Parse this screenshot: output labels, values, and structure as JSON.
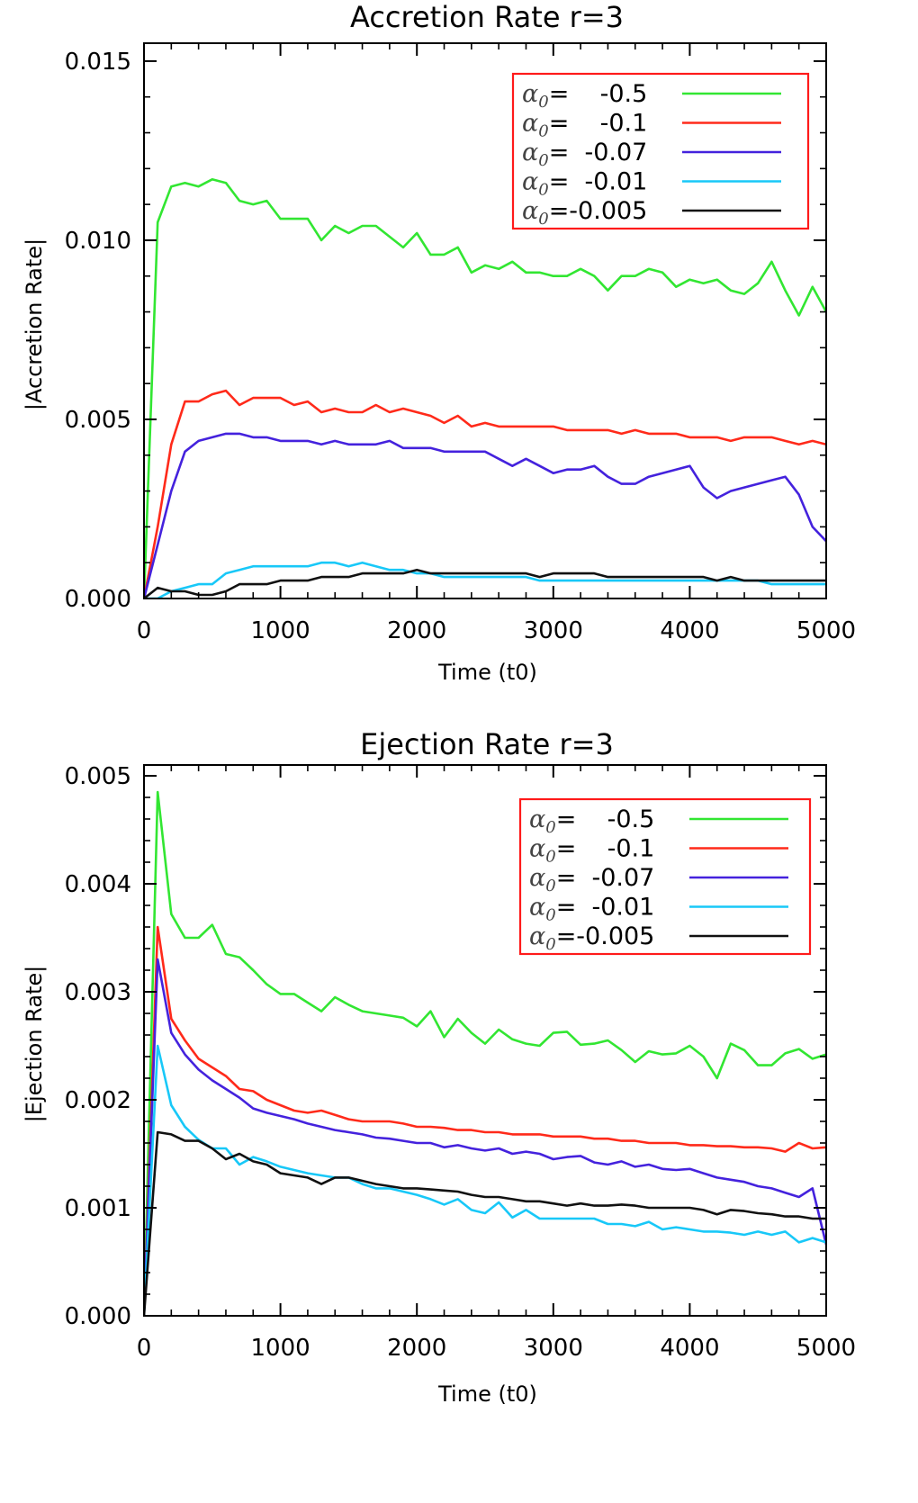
{
  "chart_data": [
    {
      "type": "line",
      "title": "Accretion Rate r=3",
      "xlabel": "Time (t0)",
      "ylabel": "|Accretion Rate|",
      "xlim": [
        0,
        5000
      ],
      "ylim": [
        0,
        0.0155
      ],
      "xticks": [
        "0",
        "1000",
        "2000",
        "3000",
        "4000",
        "5000"
      ],
      "yticks": [
        "0.000",
        "0.005",
        "0.010",
        "0.015"
      ],
      "legend_position": "top-right",
      "legend_symbol": "α",
      "legend_subscript": "0",
      "x": [
        0,
        100,
        200,
        300,
        400,
        500,
        600,
        700,
        800,
        900,
        1000,
        1100,
        1200,
        1300,
        1400,
        1500,
        1600,
        1700,
        1800,
        1900,
        2000,
        2100,
        2200,
        2300,
        2400,
        2500,
        2600,
        2700,
        2800,
        2900,
        3000,
        3100,
        3200,
        3300,
        3400,
        3500,
        3600,
        3700,
        3800,
        3900,
        4000,
        4100,
        4200,
        4300,
        4400,
        4500,
        4600,
        4700,
        4800,
        4900,
        5000
      ],
      "series": [
        {
          "name": "-0.5",
          "legend_text": "=    -0.5",
          "color": "#32e632",
          "values": [
            0,
            0.0105,
            0.0115,
            0.0116,
            0.0115,
            0.0117,
            0.0116,
            0.0111,
            0.011,
            0.0111,
            0.0106,
            0.0106,
            0.0106,
            0.01,
            0.0104,
            0.0102,
            0.0104,
            0.0104,
            0.0101,
            0.0098,
            0.0102,
            0.0096,
            0.0096,
            0.0098,
            0.0091,
            0.0093,
            0.0092,
            0.0094,
            0.0091,
            0.0091,
            0.009,
            0.009,
            0.0092,
            0.009,
            0.0086,
            0.009,
            0.009,
            0.0092,
            0.0091,
            0.0087,
            0.0089,
            0.0088,
            0.0089,
            0.0086,
            0.0085,
            0.0088,
            0.0094,
            0.0086,
            0.0079,
            0.0087,
            0.008
          ]
        },
        {
          "name": "-0.1",
          "legend_text": "=    -0.1",
          "color": "#ff2a1a",
          "values": [
            0,
            0.002,
            0.0043,
            0.0055,
            0.0055,
            0.0057,
            0.0058,
            0.0054,
            0.0056,
            0.0056,
            0.0056,
            0.0054,
            0.0055,
            0.0052,
            0.0053,
            0.0052,
            0.0052,
            0.0054,
            0.0052,
            0.0053,
            0.0052,
            0.0051,
            0.0049,
            0.0051,
            0.0048,
            0.0049,
            0.0048,
            0.0048,
            0.0048,
            0.0048,
            0.0048,
            0.0047,
            0.0047,
            0.0047,
            0.0047,
            0.0046,
            0.0047,
            0.0046,
            0.0046,
            0.0046,
            0.0045,
            0.0045,
            0.0045,
            0.0044,
            0.0045,
            0.0045,
            0.0045,
            0.0044,
            0.0043,
            0.0044,
            0.0043
          ]
        },
        {
          "name": "-0.07",
          "legend_text": "=  -0.07",
          "color": "#4422dd",
          "values": [
            0,
            0.0015,
            0.003,
            0.0041,
            0.0044,
            0.0045,
            0.0046,
            0.0046,
            0.0045,
            0.0045,
            0.0044,
            0.0044,
            0.0044,
            0.0043,
            0.0044,
            0.0043,
            0.0043,
            0.0043,
            0.0044,
            0.0042,
            0.0042,
            0.0042,
            0.0041,
            0.0041,
            0.0041,
            0.0041,
            0.0039,
            0.0037,
            0.0039,
            0.0037,
            0.0035,
            0.0036,
            0.0036,
            0.0037,
            0.0034,
            0.0032,
            0.0032,
            0.0034,
            0.0035,
            0.0036,
            0.0037,
            0.0031,
            0.0028,
            0.003,
            0.0031,
            0.0032,
            0.0033,
            0.0034,
            0.0029,
            0.002,
            0.0016
          ]
        },
        {
          "name": "-0.01",
          "legend_text": "=  -0.01",
          "color": "#18c8f8",
          "values": [
            0,
            0.0,
            0.0002,
            0.0003,
            0.0004,
            0.0004,
            0.0007,
            0.0008,
            0.0009,
            0.0009,
            0.0009,
            0.0009,
            0.0009,
            0.001,
            0.001,
            0.0009,
            0.001,
            0.0009,
            0.0008,
            0.0008,
            0.0007,
            0.0007,
            0.0006,
            0.0006,
            0.0006,
            0.0006,
            0.0006,
            0.0006,
            0.0006,
            0.0005,
            0.0005,
            0.0005,
            0.0005,
            0.0005,
            0.0005,
            0.0005,
            0.0005,
            0.0005,
            0.0005,
            0.0005,
            0.0005,
            0.0005,
            0.0005,
            0.0005,
            0.0005,
            0.0005,
            0.0004,
            0.0004,
            0.0004,
            0.0004,
            0.0004
          ]
        },
        {
          "name": "-0.005",
          "legend_text": "=-0.005",
          "color": "#111111",
          "values": [
            0,
            0.0003,
            0.0002,
            0.0002,
            0.0001,
            0.0001,
            0.0002,
            0.0004,
            0.0004,
            0.0004,
            0.0005,
            0.0005,
            0.0005,
            0.0006,
            0.0006,
            0.0006,
            0.0007,
            0.0007,
            0.0007,
            0.0007,
            0.0008,
            0.0007,
            0.0007,
            0.0007,
            0.0007,
            0.0007,
            0.0007,
            0.0007,
            0.0007,
            0.0006,
            0.0007,
            0.0007,
            0.0007,
            0.0007,
            0.0006,
            0.0006,
            0.0006,
            0.0006,
            0.0006,
            0.0006,
            0.0006,
            0.0006,
            0.0005,
            0.0006,
            0.0005,
            0.0005,
            0.0005,
            0.0005,
            0.0005,
            0.0005,
            0.0005
          ]
        }
      ]
    },
    {
      "type": "line",
      "title": "Ejection Rate r=3",
      "xlabel": "Time (t0)",
      "ylabel": "|Ejection Rate|",
      "xlim": [
        0,
        5000
      ],
      "ylim": [
        0,
        0.0051
      ],
      "xticks": [
        "0",
        "1000",
        "2000",
        "3000",
        "4000",
        "5000"
      ],
      "yticks": [
        "0.000",
        "0.001",
        "0.002",
        "0.003",
        "0.004",
        "0.005"
      ],
      "legend_position": "top-right",
      "legend_symbol": "α",
      "legend_subscript": "0",
      "x": [
        0,
        100,
        200,
        300,
        400,
        500,
        600,
        700,
        800,
        900,
        1000,
        1100,
        1200,
        1300,
        1400,
        1500,
        1600,
        1700,
        1800,
        1900,
        2000,
        2100,
        2200,
        2300,
        2400,
        2500,
        2600,
        2700,
        2800,
        2900,
        3000,
        3100,
        3200,
        3300,
        3400,
        3500,
        3600,
        3700,
        3800,
        3900,
        4000,
        4100,
        4200,
        4300,
        4400,
        4500,
        4600,
        4700,
        4800,
        4900,
        5000
      ],
      "series": [
        {
          "name": "-0.5",
          "legend_text": "=    -0.5",
          "color": "#32e632",
          "values": [
            0,
            0.00485,
            0.00372,
            0.0035,
            0.0035,
            0.00362,
            0.00335,
            0.00332,
            0.0032,
            0.00307,
            0.00298,
            0.00298,
            0.0029,
            0.00282,
            0.00295,
            0.00288,
            0.00282,
            0.0028,
            0.00278,
            0.00276,
            0.00268,
            0.00282,
            0.00258,
            0.00275,
            0.00262,
            0.00252,
            0.00265,
            0.00256,
            0.00252,
            0.0025,
            0.00262,
            0.00263,
            0.00251,
            0.00252,
            0.00255,
            0.00246,
            0.00235,
            0.00245,
            0.00242,
            0.00243,
            0.0025,
            0.0024,
            0.0022,
            0.00252,
            0.00246,
            0.00232,
            0.00232,
            0.00243,
            0.00247,
            0.00238,
            0.00242
          ]
        },
        {
          "name": "-0.1",
          "legend_text": "=    -0.1",
          "color": "#ff2a1a",
          "values": [
            0,
            0.0036,
            0.00275,
            0.00255,
            0.00238,
            0.0023,
            0.00222,
            0.0021,
            0.00208,
            0.002,
            0.00195,
            0.0019,
            0.00188,
            0.0019,
            0.00186,
            0.00182,
            0.0018,
            0.0018,
            0.0018,
            0.00178,
            0.00175,
            0.00175,
            0.00174,
            0.00172,
            0.00172,
            0.0017,
            0.0017,
            0.00168,
            0.00168,
            0.00168,
            0.00166,
            0.00166,
            0.00166,
            0.00164,
            0.00164,
            0.00162,
            0.00162,
            0.0016,
            0.0016,
            0.0016,
            0.00158,
            0.00158,
            0.00157,
            0.00157,
            0.00156,
            0.00156,
            0.00155,
            0.00152,
            0.0016,
            0.00155,
            0.00156
          ]
        },
        {
          "name": "-0.07",
          "legend_text": "=  -0.07",
          "color": "#4422dd",
          "values": [
            0,
            0.0033,
            0.00262,
            0.00242,
            0.00228,
            0.00218,
            0.0021,
            0.00202,
            0.00192,
            0.00188,
            0.00185,
            0.00182,
            0.00178,
            0.00175,
            0.00172,
            0.0017,
            0.00168,
            0.00165,
            0.00164,
            0.00162,
            0.0016,
            0.0016,
            0.00156,
            0.00158,
            0.00155,
            0.00153,
            0.00155,
            0.0015,
            0.00152,
            0.0015,
            0.00145,
            0.00147,
            0.00148,
            0.00142,
            0.0014,
            0.00143,
            0.00138,
            0.0014,
            0.00136,
            0.00135,
            0.00136,
            0.00132,
            0.00128,
            0.00126,
            0.00124,
            0.0012,
            0.00118,
            0.00114,
            0.0011,
            0.00118,
            0.00066
          ]
        },
        {
          "name": "-0.01",
          "legend_text": "=  -0.01",
          "color": "#18c8f8",
          "values": [
            0,
            0.0025,
            0.00195,
            0.00175,
            0.00163,
            0.00155,
            0.00155,
            0.0014,
            0.00147,
            0.00143,
            0.00138,
            0.00135,
            0.00132,
            0.0013,
            0.00128,
            0.00128,
            0.00122,
            0.00118,
            0.00118,
            0.00115,
            0.00112,
            0.00108,
            0.00103,
            0.00108,
            0.00098,
            0.00095,
            0.00105,
            0.00091,
            0.00098,
            0.0009,
            0.0009,
            0.0009,
            0.0009,
            0.0009,
            0.00085,
            0.00085,
            0.00083,
            0.00087,
            0.0008,
            0.00082,
            0.0008,
            0.00078,
            0.00078,
            0.00077,
            0.00075,
            0.00078,
            0.00075,
            0.00078,
            0.00068,
            0.00072,
            0.00068
          ]
        },
        {
          "name": "-0.005",
          "legend_text": "=-0.005",
          "color": "#111111",
          "values": [
            0,
            0.0017,
            0.00168,
            0.00162,
            0.00162,
            0.00155,
            0.00145,
            0.0015,
            0.00143,
            0.0014,
            0.00132,
            0.0013,
            0.00128,
            0.00122,
            0.00128,
            0.00128,
            0.00125,
            0.00122,
            0.0012,
            0.00118,
            0.00118,
            0.00117,
            0.00116,
            0.00115,
            0.00112,
            0.0011,
            0.0011,
            0.00108,
            0.00106,
            0.00106,
            0.00104,
            0.00102,
            0.00104,
            0.00102,
            0.00102,
            0.00103,
            0.00102,
            0.001,
            0.001,
            0.001,
            0.001,
            0.00098,
            0.00094,
            0.00098,
            0.00097,
            0.00095,
            0.00094,
            0.00092,
            0.00092,
            0.0009,
            0.0009
          ]
        }
      ]
    }
  ]
}
